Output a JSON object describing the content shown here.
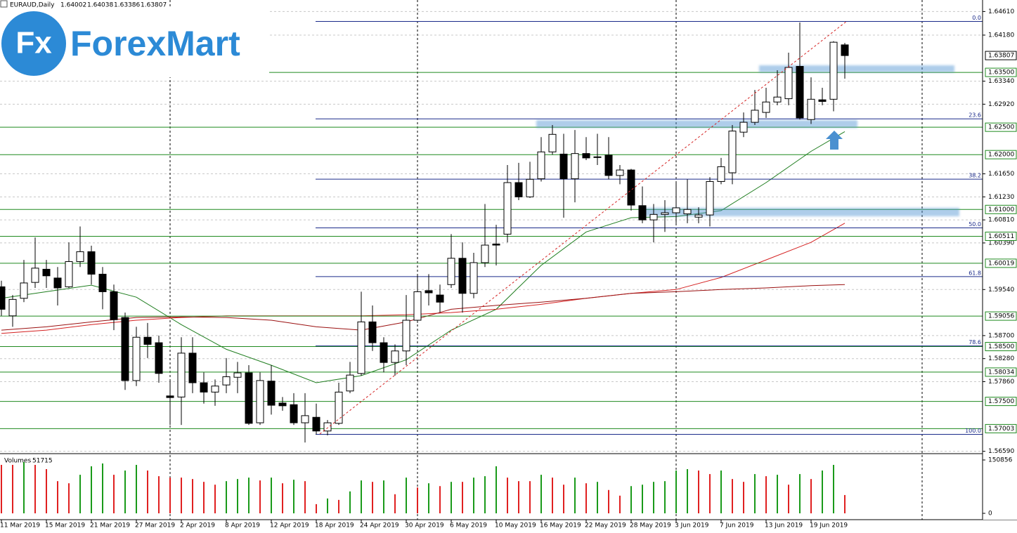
{
  "logo": {
    "mark": "Fx",
    "name": "ForexMart"
  },
  "chart_data": {
    "type": "candlestick",
    "title": "EURAUD,Daily",
    "categories": [
      "11 Mar 2019",
      null,
      null,
      null,
      "15 Mar 2019",
      null,
      null,
      null,
      "21 Mar 2019",
      null,
      null,
      null,
      "27 Mar 2019",
      null,
      null,
      null,
      "2 Apr 2019",
      null,
      null,
      null,
      "8 Apr 2019",
      null,
      null,
      null,
      "12 Apr 2019",
      null,
      null,
      null,
      "18 Apr 2019",
      null,
      null,
      null,
      "24 Apr 2019",
      null,
      null,
      null,
      "30 Apr 2019",
      null,
      null,
      null,
      "6 May 2019",
      null,
      null,
      null,
      "10 May 2019",
      null,
      null,
      null,
      "16 May 2019",
      null,
      null,
      null,
      "22 May 2019",
      null,
      null,
      null,
      "28 May 2019",
      null,
      null,
      null,
      "3 Jun 2019",
      null,
      null,
      null,
      "7 Jun 2019",
      null,
      null,
      null,
      "13 Jun 2019",
      null,
      null,
      null,
      "19 Jun 2019",
      null,
      null,
      null
    ],
    "open": [
      1.5959,
      1.5906,
      1.5938,
      1.5967,
      1.5991,
      1.5975,
      1.5959,
      1.6005,
      1.6023,
      1.5982,
      1.595,
      1.5903,
      1.5788,
      1.5867,
      1.5857,
      1.576,
      1.5758,
      1.5838,
      1.5784,
      1.5767,
      1.578,
      1.5794,
      1.5802,
      1.5711,
      1.5787,
      1.5747,
      1.5744,
      1.5711,
      1.5721,
      1.5696,
      1.571,
      1.5769,
      1.5801,
      1.5895,
      1.5857,
      1.5821,
      1.5842,
      1.5898,
      1.5952,
      1.5944,
      1.5963,
      1.6011,
      1.5947,
      1.6003,
      1.6037,
      1.6055,
      1.6149,
      1.6123,
      1.6156,
      1.6205,
      1.6201,
      1.6156,
      1.6202,
      1.6196,
      1.6199,
      1.6162,
      1.6172,
      1.6107,
      1.6081,
      1.6091,
      1.6094,
      1.6092,
      1.6086,
      1.609,
      1.6151,
      1.6167,
      1.6241,
      1.6259,
      1.6277,
      1.6296,
      1.6302,
      1.6361,
      1.6264,
      1.63,
      1.6301,
      1.64002
    ],
    "high": [
      1.597,
      1.5944,
      1.6008,
      1.6049,
      1.6008,
      1.5995,
      1.604,
      1.6069,
      1.6034,
      1.5995,
      1.5963,
      1.5912,
      1.5886,
      1.5893,
      1.587,
      1.579,
      1.5867,
      1.5867,
      1.5803,
      1.579,
      1.5829,
      1.5822,
      1.5816,
      1.5803,
      1.5816,
      1.5758,
      1.5765,
      1.5765,
      1.5746,
      1.5716,
      1.5784,
      1.5822,
      1.595,
      1.5925,
      1.5867,
      1.5854,
      1.5944,
      1.5982,
      1.5982,
      1.5963,
      1.6055,
      1.604,
      1.6021,
      1.611,
      1.6072,
      1.6181,
      1.6185,
      1.6187,
      1.6232,
      1.6254,
      1.6238,
      1.6245,
      1.6232,
      1.6238,
      1.6232,
      1.6181,
      1.6174,
      1.6142,
      1.611,
      1.6117,
      1.6149,
      1.6155,
      1.6104,
      1.6159,
      1.6194,
      1.6254,
      1.6277,
      1.6318,
      1.6322,
      1.6354,
      1.6386,
      1.6441,
      1.6341,
      1.6322,
      1.6407,
      1.64038
    ],
    "low": [
      1.5906,
      1.5886,
      1.5931,
      1.5957,
      1.5957,
      1.5925,
      1.5957,
      1.5995,
      1.5963,
      1.5918,
      1.588,
      1.5771,
      1.5778,
      1.5829,
      1.5784,
      1.5707,
      1.5707,
      1.5765,
      1.5746,
      1.5742,
      1.5765,
      1.5765,
      1.5707,
      1.5707,
      1.5726,
      1.5733,
      1.5707,
      1.5675,
      1.569,
      1.5688,
      1.5707,
      1.5765,
      1.5797,
      1.5842,
      1.5803,
      1.5797,
      1.5816,
      1.5893,
      1.5925,
      1.5912,
      1.5957,
      1.5912,
      1.5938,
      1.5995,
      1.5998,
      1.604,
      1.6117,
      1.6121,
      1.6151,
      1.62,
      1.6085,
      1.6113,
      1.619,
      1.6181,
      1.6155,
      1.6146,
      1.6098,
      1.6075,
      1.604,
      1.6059,
      1.6075,
      1.6075,
      1.6075,
      1.6069,
      1.6146,
      1.6146,
      1.6232,
      1.6254,
      1.6267,
      1.629,
      1.629,
      1.6264,
      1.6256,
      1.629,
      1.6279,
      1.63386
    ],
    "close": [
      1.5918,
      1.5936,
      1.5966,
      1.5993,
      1.5979,
      1.5957,
      1.6005,
      1.6023,
      1.5982,
      1.595,
      1.5899,
      1.5788,
      1.5867,
      1.5854,
      1.5801,
      1.5757,
      1.5838,
      1.5784,
      1.5767,
      1.5778,
      1.5795,
      1.5802,
      1.571,
      1.5788,
      1.5743,
      1.5742,
      1.5711,
      1.5724,
      1.5696,
      1.5711,
      1.5767,
      1.5798,
      1.5895,
      1.5857,
      1.5821,
      1.5842,
      1.5898,
      1.595,
      1.5948,
      1.5931,
      1.6011,
      1.5947,
      1.6003,
      1.6035,
      1.6035,
      1.6149,
      1.6123,
      1.6155,
      1.6205,
      1.6237,
      1.6156,
      1.6202,
      1.6194,
      1.6195,
      1.6162,
      1.6172,
      1.6108,
      1.6081,
      1.6091,
      1.6094,
      1.6103,
      1.61,
      1.609,
      1.6151,
      1.6178,
      1.6243,
      1.6259,
      1.6281,
      1.6296,
      1.6305,
      1.6359,
      1.6267,
      1.6301,
      1.6297,
      1.6405,
      1.63807
    ],
    "up_color": "#ffffff",
    "down_color": "#000000",
    "ylim": [
      1.5656,
      1.6482
    ],
    "yticks": [
      {
        "value": 1.6461,
        "label": "1.64610"
      },
      {
        "value": 1.6418,
        "label": "1.64180"
      },
      {
        "value": 1.6334,
        "label": "1.63340"
      },
      {
        "value": 1.6292,
        "label": "1.62920"
      },
      {
        "value": 1.6165,
        "label": "1.61650"
      },
      {
        "value": 1.6123,
        "label": "1.61230"
      },
      {
        "value": 1.6081,
        "label": "1.60810"
      },
      {
        "value": 1.6039,
        "label": "1.60390"
      },
      {
        "value": 1.5954,
        "label": "1.59540"
      },
      {
        "value": 1.587,
        "label": "1.58700"
      },
      {
        "value": 1.5828,
        "label": "1.58280"
      },
      {
        "value": 1.5786,
        "label": "1.57860"
      },
      {
        "value": 1.5659,
        "label": "1.56590"
      }
    ],
    "grid": true,
    "levels": [
      {
        "value": 1.635,
        "label": "1.63500"
      },
      {
        "value": 1.625,
        "label": "1.62500"
      },
      {
        "value": 1.62,
        "label": "1.62000"
      },
      {
        "value": 1.61,
        "label": "1.61000"
      },
      1.60511,
      1.60019,
      1.59056,
      {
        "value": 1.585,
        "label": "1.58500"
      },
      1.58034,
      {
        "value": 1.575,
        "label": "1.57500"
      },
      1.57003
    ],
    "level_color": "#1f8a1f",
    "fibo": {
      "high": 1.6443,
      "low": 1.569,
      "color": "#1a2a8a",
      "levels": [
        {
          "value": 0,
          "label": "0.0"
        },
        23.6,
        38.2,
        {
          "value": 50,
          "label": "50.0"
        },
        61.8,
        78.6,
        {
          "value": 100,
          "label": "100.0"
        }
      ]
    },
    "ma_bars": [
      0,
      4,
      8,
      12,
      16,
      20,
      24,
      28,
      32,
      36,
      40,
      44,
      48,
      52,
      56,
      60,
      64,
      68,
      72,
      75
    ],
    "ma": [
      {
        "color": "#1e7d1e",
        "values": [
          1.5938,
          1.595,
          1.5962,
          1.594,
          1.589,
          1.5845,
          1.5816,
          1.5784,
          1.5797,
          1.5826,
          1.588,
          1.5918,
          1.5998,
          1.6059,
          1.6085,
          1.6087,
          1.6098,
          1.6149,
          1.6206,
          1.6242
        ]
      },
      {
        "color": "#d42020",
        "values": [
          1.5874,
          1.588,
          1.589,
          1.5898,
          1.5903,
          1.5906,
          1.5906,
          1.5906,
          1.5906,
          1.5908,
          1.5912,
          1.5918,
          1.5927,
          1.5938,
          1.5947,
          1.5954,
          1.5976,
          1.6008,
          1.604,
          1.6075
        ]
      },
      {
        "color": "#9a1010",
        "values": [
          1.588,
          1.5886,
          1.5895,
          1.5903,
          1.5904,
          1.5903,
          1.5898,
          1.5886,
          1.588,
          1.5895,
          1.5918,
          1.5925,
          1.5931,
          1.5938,
          1.5947,
          1.595,
          1.5954,
          1.5957,
          1.5961,
          1.5963
        ]
      }
    ],
    "volume": {
      "title": "Volumes",
      "ylim": [
        0,
        150856
      ],
      "yticks": [
        0,
        150856
      ],
      "up_color": "#1a9a1a",
      "down_color": "#e02020",
      "values": [
        137000,
        137000,
        145000,
        137000,
        125000,
        91000,
        85000,
        109000,
        133000,
        141000,
        109000,
        121000,
        137000,
        121000,
        105000,
        101000,
        101000,
        97000,
        89000,
        81000,
        91000,
        97000,
        101000,
        93000,
        101000,
        85000,
        95000,
        91000,
        26000,
        42000,
        38000,
        62000,
        93000,
        89000,
        93000,
        54000,
        101000,
        73000,
        85000,
        77000,
        89000,
        89000,
        101000,
        105000,
        133000,
        101000,
        91000,
        91000,
        109000,
        101000,
        81000,
        101000,
        85000,
        89000,
        66000,
        50000,
        77000,
        81000,
        89000,
        91000,
        121000,
        125000,
        121000,
        111000,
        121000,
        97000,
        89000,
        111000,
        105000,
        109000,
        81000,
        111000,
        97000,
        121000,
        137000,
        51715
      ]
    }
  }
}
